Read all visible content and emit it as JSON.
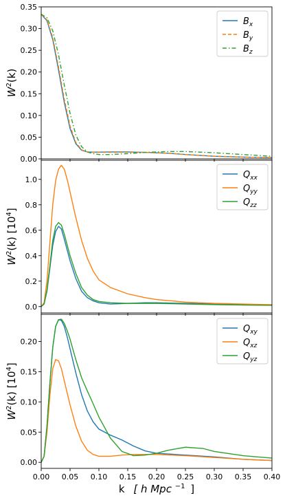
{
  "x_axis": {
    "label_main": "k",
    "label_bracket": "[ h Mpc",
    "label_sup": "−1",
    "label_close": "]",
    "ticks": [
      "0.00",
      "0.05",
      "0.10",
      "0.15",
      "0.20",
      "0.25",
      "0.30",
      "0.35",
      "0.40"
    ]
  },
  "chart_data": [
    {
      "type": "line",
      "ylabel_main": "W",
      "ylabel_sup": "2",
      "ylabel_rest": "(k)",
      "ylabel_unit": "",
      "xlim": [
        0,
        0.4
      ],
      "ylim": [
        0,
        0.35
      ],
      "yticks": [
        "0.00",
        "0.05",
        "0.10",
        "0.15",
        "0.20",
        "0.25",
        "0.30",
        "0.35"
      ],
      "legend_position": "top-right",
      "series": [
        {
          "name": "B",
          "sub": "x",
          "color": "#1f77b4",
          "dash": "solid",
          "x": [
            0,
            0.01,
            0.02,
            0.03,
            0.04,
            0.05,
            0.06,
            0.07,
            0.08,
            0.09,
            0.1,
            0.12,
            0.15,
            0.18,
            0.2,
            0.22,
            0.25,
            0.3,
            0.35,
            0.4
          ],
          "y": [
            0.333,
            0.318,
            0.275,
            0.205,
            0.13,
            0.07,
            0.035,
            0.02,
            0.016,
            0.0155,
            0.0155,
            0.016,
            0.016,
            0.015,
            0.014,
            0.013,
            0.01,
            0.006,
            0.004,
            0.003
          ]
        },
        {
          "name": "B",
          "sub": "y",
          "color": "#ff7f0e",
          "dash": "dashed",
          "x": [
            0,
            0.01,
            0.02,
            0.03,
            0.04,
            0.05,
            0.06,
            0.07,
            0.08,
            0.09,
            0.1,
            0.12,
            0.15,
            0.18,
            0.2,
            0.22,
            0.25,
            0.3,
            0.35,
            0.4
          ],
          "y": [
            0.333,
            0.32,
            0.28,
            0.212,
            0.138,
            0.076,
            0.038,
            0.021,
            0.016,
            0.015,
            0.015,
            0.015,
            0.015,
            0.015,
            0.014,
            0.013,
            0.01,
            0.006,
            0.004,
            0.003
          ]
        },
        {
          "name": "B",
          "sub": "z",
          "color": "#2ca02c",
          "dash": "dashdot",
          "x": [
            0,
            0.01,
            0.02,
            0.03,
            0.04,
            0.05,
            0.06,
            0.07,
            0.08,
            0.09,
            0.1,
            0.12,
            0.15,
            0.18,
            0.2,
            0.22,
            0.25,
            0.3,
            0.35,
            0.4
          ],
          "y": [
            0.333,
            0.325,
            0.295,
            0.24,
            0.17,
            0.105,
            0.055,
            0.028,
            0.016,
            0.012,
            0.01,
            0.01,
            0.012,
            0.015,
            0.016,
            0.017,
            0.017,
            0.014,
            0.01,
            0.006
          ]
        }
      ]
    },
    {
      "type": "line",
      "ylabel_main": "W",
      "ylabel_sup": "2",
      "ylabel_rest": "(k)  [10",
      "ylabel_unit_sup": "4",
      "ylabel_close": "]",
      "xlim": [
        0,
        0.4
      ],
      "ylim": [
        -0.05,
        1.15
      ],
      "yticks": [
        "0.0",
        "0.2",
        "0.4",
        "0.6",
        "0.8",
        "1.0"
      ],
      "ytick_values": [
        0,
        0.2,
        0.4,
        0.6,
        0.8,
        1.0
      ],
      "legend_position": "top-right",
      "series": [
        {
          "name": "Q",
          "sub": "xx",
          "color": "#1f77b4",
          "dash": "solid",
          "x": [
            0,
            0.005,
            0.01,
            0.015,
            0.02,
            0.025,
            0.03,
            0.035,
            0.04,
            0.05,
            0.06,
            0.07,
            0.08,
            0.09,
            0.1,
            0.12,
            0.15,
            0.18,
            0.2,
            0.25,
            0.3,
            0.35,
            0.4
          ],
          "y": [
            0,
            0.02,
            0.12,
            0.3,
            0.48,
            0.59,
            0.63,
            0.61,
            0.53,
            0.36,
            0.22,
            0.12,
            0.07,
            0.045,
            0.03,
            0.02,
            0.025,
            0.03,
            0.03,
            0.025,
            0.02,
            0.015,
            0.01
          ]
        },
        {
          "name": "Q",
          "sub": "yy",
          "color": "#ff7f0e",
          "dash": "solid",
          "x": [
            0,
            0.005,
            0.01,
            0.015,
            0.02,
            0.025,
            0.03,
            0.035,
            0.04,
            0.045,
            0.05,
            0.06,
            0.07,
            0.08,
            0.09,
            0.1,
            0.12,
            0.15,
            0.18,
            0.2,
            0.25,
            0.3,
            0.35,
            0.4
          ],
          "y": [
            0,
            0.03,
            0.2,
            0.5,
            0.8,
            0.99,
            1.08,
            1.11,
            1.08,
            1.0,
            0.9,
            0.7,
            0.52,
            0.38,
            0.28,
            0.21,
            0.15,
            0.1,
            0.07,
            0.055,
            0.035,
            0.025,
            0.02,
            0.015
          ]
        },
        {
          "name": "Q",
          "sub": "zz",
          "color": "#2ca02c",
          "dash": "solid",
          "x": [
            0,
            0.005,
            0.01,
            0.015,
            0.02,
            0.025,
            0.03,
            0.035,
            0.04,
            0.05,
            0.06,
            0.07,
            0.08,
            0.09,
            0.1,
            0.12,
            0.15,
            0.18,
            0.2,
            0.25,
            0.3,
            0.35,
            0.4
          ],
          "y": [
            0,
            0.02,
            0.13,
            0.32,
            0.52,
            0.63,
            0.66,
            0.64,
            0.57,
            0.4,
            0.26,
            0.15,
            0.09,
            0.055,
            0.04,
            0.03,
            0.025,
            0.025,
            0.025,
            0.02,
            0.015,
            0.012,
            0.01
          ]
        }
      ]
    },
    {
      "type": "line",
      "ylabel_main": "W",
      "ylabel_sup": "2",
      "ylabel_rest": "(k)  [10",
      "ylabel_unit_sup": "4",
      "ylabel_close": "]",
      "xlim": [
        0,
        0.4
      ],
      "ylim": [
        -0.01,
        0.245
      ],
      "yticks": [
        "0.00",
        "0.05",
        "0.10",
        "0.15",
        "0.20"
      ],
      "ytick_values": [
        0,
        0.05,
        0.1,
        0.15,
        0.2
      ],
      "legend_position": "top-right",
      "series": [
        {
          "name": "Q",
          "sub": "xy",
          "color": "#1f77b4",
          "dash": "solid",
          "x": [
            0,
            0.005,
            0.01,
            0.015,
            0.02,
            0.025,
            0.03,
            0.035,
            0.04,
            0.045,
            0.05,
            0.06,
            0.07,
            0.08,
            0.09,
            0.1,
            0.12,
            0.14,
            0.16,
            0.18,
            0.2,
            0.25,
            0.3,
            0.35,
            0.4
          ],
          "y": [
            0,
            0.01,
            0.06,
            0.13,
            0.19,
            0.225,
            0.236,
            0.235,
            0.225,
            0.208,
            0.188,
            0.148,
            0.112,
            0.085,
            0.067,
            0.055,
            0.045,
            0.037,
            0.027,
            0.019,
            0.015,
            0.012,
            0.009,
            0.005,
            0.003
          ]
        },
        {
          "name": "Q",
          "sub": "xz",
          "color": "#ff7f0e",
          "dash": "solid",
          "x": [
            0,
            0.005,
            0.01,
            0.015,
            0.02,
            0.025,
            0.03,
            0.035,
            0.04,
            0.05,
            0.06,
            0.07,
            0.08,
            0.09,
            0.1,
            0.12,
            0.14,
            0.16,
            0.18,
            0.2,
            0.25,
            0.3,
            0.35,
            0.4
          ],
          "y": [
            0,
            0.01,
            0.05,
            0.11,
            0.155,
            0.17,
            0.168,
            0.155,
            0.135,
            0.095,
            0.06,
            0.035,
            0.02,
            0.013,
            0.01,
            0.01,
            0.012,
            0.013,
            0.013,
            0.013,
            0.011,
            0.008,
            0.005,
            0.003
          ]
        },
        {
          "name": "Q",
          "sub": "yz",
          "color": "#2ca02c",
          "dash": "solid",
          "x": [
            0,
            0.005,
            0.01,
            0.015,
            0.02,
            0.025,
            0.03,
            0.035,
            0.04,
            0.045,
            0.05,
            0.06,
            0.07,
            0.08,
            0.09,
            0.1,
            0.12,
            0.14,
            0.16,
            0.18,
            0.2,
            0.22,
            0.25,
            0.28,
            0.3,
            0.35,
            0.4
          ],
          "y": [
            0,
            0.01,
            0.06,
            0.13,
            0.19,
            0.225,
            0.236,
            0.237,
            0.23,
            0.218,
            0.204,
            0.17,
            0.14,
            0.118,
            0.097,
            0.075,
            0.04,
            0.018,
            0.011,
            0.012,
            0.015,
            0.02,
            0.025,
            0.023,
            0.018,
            0.011,
            0.007
          ]
        }
      ]
    }
  ]
}
